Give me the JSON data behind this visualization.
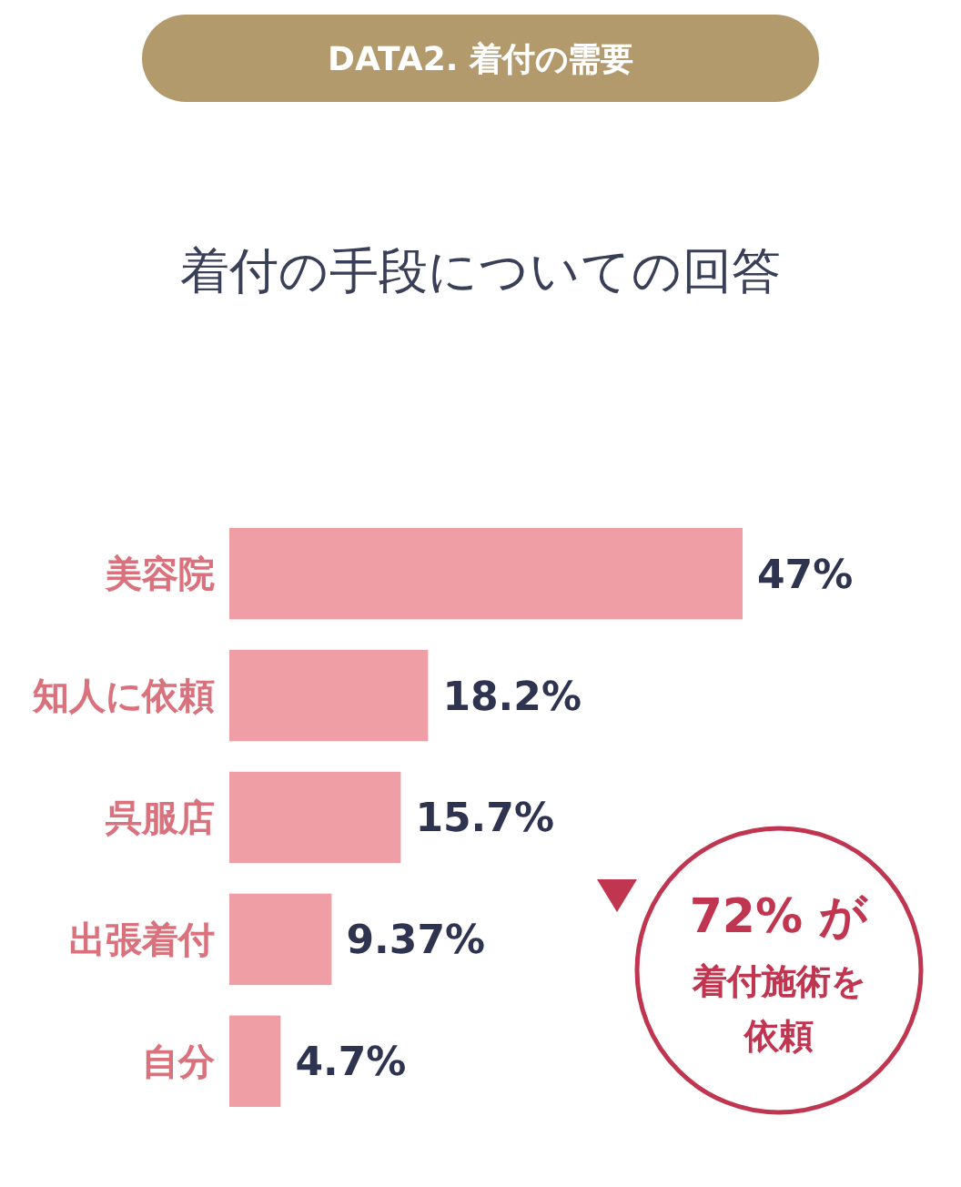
{
  "chart_data": {
    "type": "bar",
    "orientation": "horizontal",
    "subtitle": "DATA2. 着付の需要",
    "title": "着付の手段についての回答",
    "categories": [
      "美容院",
      "知人に依頼",
      "呉服店",
      "出張着付",
      "自分"
    ],
    "values": [
      47,
      18.2,
      15.7,
      9.37,
      4.7
    ],
    "value_labels": [
      "47%",
      "18.2%",
      "15.7%",
      "9.37%",
      "4.7%"
    ],
    "color": "#ef9ea6",
    "annotations": [
      "72% が",
      "着付施術を",
      "依頼"
    ]
  }
}
